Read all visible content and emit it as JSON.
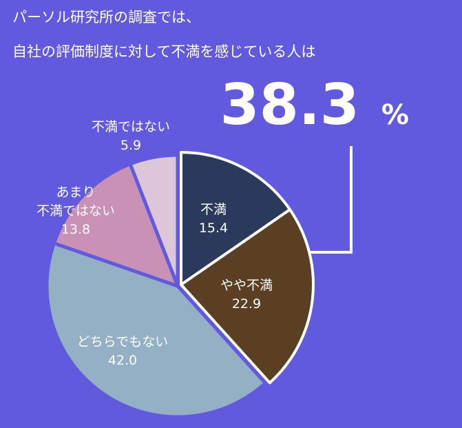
{
  "chart_data": {
    "type": "pie",
    "title_lines": [
      "パーソル研究所の調査では、",
      "自社の評価制度に対して不満を感じている人は"
    ],
    "annotation": {
      "value": 38.3,
      "unit": "%"
    },
    "categories": [
      "不満",
      "やや不満",
      "どちらでもない",
      "あまり\n不満ではない",
      "不満ではない"
    ],
    "values": [
      15.4,
      22.9,
      42.0,
      13.8,
      5.9
    ],
    "value_labels": [
      "15.4",
      "22.9",
      "42.0",
      "13.8",
      "5.9"
    ],
    "colors": [
      "#2b3a5c",
      "#5a3f22",
      "#93b0c4",
      "#c991b6",
      "#dcc6d7"
    ],
    "highlighted": [
      0,
      1
    ]
  }
}
